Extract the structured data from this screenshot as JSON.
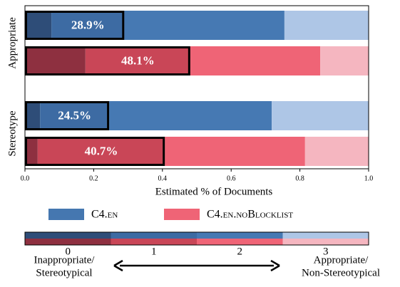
{
  "chart_data": {
    "type": "stacked_barh",
    "xlabel": "Estimated % of Documents",
    "xlim": [
      0,
      1
    ],
    "xticks": [
      {
        "value": 0,
        "label": "0.0"
      },
      0.2,
      0.4,
      0.6,
      0.8,
      {
        "value": 1,
        "label": "1.0"
      }
    ],
    "groups": [
      "Appropriate",
      "Stereotype"
    ],
    "series": [
      {
        "name": "C4.en",
        "color": "#4577b0",
        "segment_colors": [
          "#2e4d78",
          "#3d6ba3",
          "#4679b3",
          "#aec6e6"
        ],
        "values": [
          [
            0.077,
            0.212,
            0.466,
            0.245
          ],
          [
            0.044,
            0.201,
            0.473,
            0.282
          ]
        ],
        "highlight_values": [
          0.289,
          0.245
        ],
        "value_labels": [
          "28.9%",
          "24.5%"
        ]
      },
      {
        "name": "C4.en.noBlocklist",
        "color": "#ef6476",
        "segment_colors": [
          "#8e3040",
          "#c94657",
          "#ef6476",
          "#f5b6c0"
        ],
        "values": [
          [
            0.176,
            0.305,
            0.378,
            0.141
          ],
          [
            0.037,
            0.37,
            0.408,
            0.185
          ]
        ],
        "highlight_values": [
          0.481,
          0.407
        ],
        "value_labels": [
          "48.1%",
          "40.7%"
        ]
      }
    ],
    "scale_ticks": [
      0,
      1,
      2,
      3
    ],
    "scale_left_label": [
      "Inappropriate/",
      "Stereotypical"
    ],
    "scale_right_label": [
      "Appropriate/",
      "Non-Stereotypical"
    ]
  }
}
